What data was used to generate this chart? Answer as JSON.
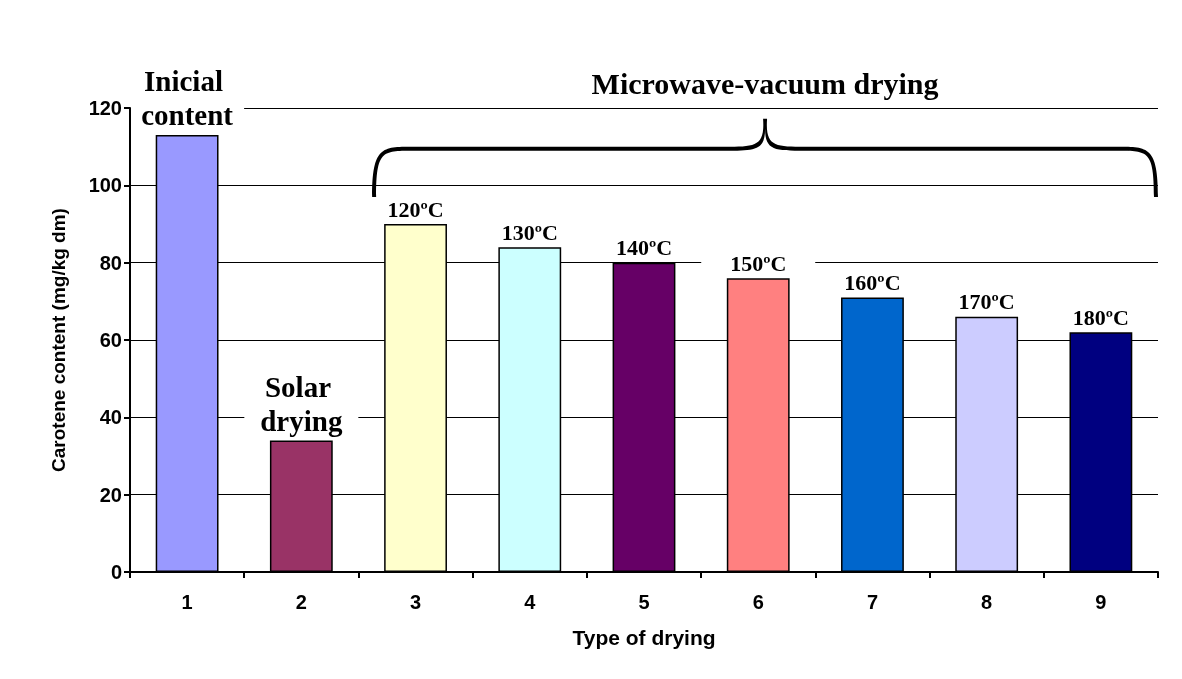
{
  "chart_data": {
    "type": "bar",
    "xlabel": "Type of drying",
    "ylabel": "Carotene content (mg/kg dm)",
    "categories": [
      "1",
      "2",
      "3",
      "4",
      "5",
      "6",
      "7",
      "8",
      "9"
    ],
    "values": [
      113,
      34,
      90,
      84,
      80,
      76,
      71,
      66,
      62
    ],
    "colors": [
      "#9999ff",
      "#993366",
      "#ffffcc",
      "#ccffff",
      "#660066",
      "#ff8080",
      "#0066cc",
      "#ccccff",
      "#000080"
    ],
    "ylim": [
      0,
      120
    ],
    "yticks": [
      0,
      20,
      40,
      60,
      80,
      100,
      120
    ],
    "grid": "y",
    "annotations": [
      {
        "text": "Inicial content",
        "x": "1",
        "y": 113
      },
      {
        "text": "Solar drying",
        "x": "2",
        "y": 34
      },
      {
        "text": "120ºC",
        "x": "3",
        "y": 90
      },
      {
        "text": "130ºC",
        "x": "4",
        "y": 84
      },
      {
        "text": "140ºC",
        "x": "5",
        "y": 80
      },
      {
        "text": "150ºC",
        "x": "6",
        "y": 76
      },
      {
        "text": "160ºC",
        "x": "7",
        "y": 71
      },
      {
        "text": "170ºC",
        "x": "8",
        "y": 66
      },
      {
        "text": "180ºC",
        "x": "9",
        "y": 62
      },
      "Microwave-vacuum drying"
    ]
  }
}
